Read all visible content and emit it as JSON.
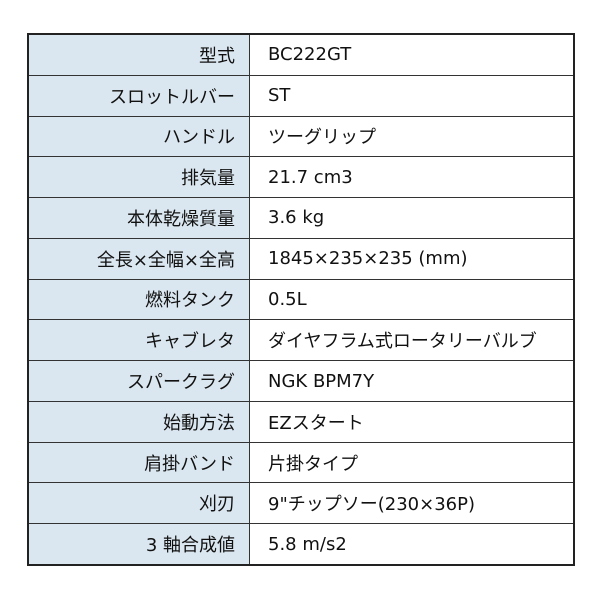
{
  "colors": {
    "label_bg": "#dbe7f0",
    "value_bg": "#ffffff",
    "border": "#333333"
  },
  "specs": [
    {
      "label": "型式",
      "value": "BC222GT"
    },
    {
      "label": "スロットルバー",
      "value": "ST"
    },
    {
      "label": "ハンドル",
      "value": "ツーグリップ"
    },
    {
      "label": "排気量",
      "value": "21.7 cm3"
    },
    {
      "label": "本体乾燥質量",
      "value": "3.6 kg"
    },
    {
      "label": "全長×全幅×全高",
      "value": "1845×235×235 (mm)"
    },
    {
      "label": "燃料タンク",
      "value": "0.5L"
    },
    {
      "label": "キャブレタ",
      "value": "ダイヤフラム式ロータリーバルブ"
    },
    {
      "label": "スパークラグ",
      "value": "NGK BPM7Y"
    },
    {
      "label": "始動方法",
      "value": "EZスタート"
    },
    {
      "label": "肩掛バンド",
      "value": "片掛タイプ"
    },
    {
      "label": "刈刃",
      "value": "9\"チップソー(230×36P)"
    },
    {
      "label": "3 軸合成値",
      "value": "5.8 m/s2"
    }
  ]
}
